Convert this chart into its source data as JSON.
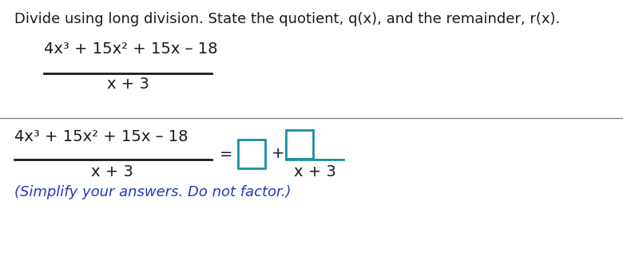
{
  "instruction_text": "Divide using long division. State the quotient, q(x), and the remainder, r(x).",
  "numerator": "4x³ + 15x² + 15x – 18",
  "denominator": "x + 3",
  "equals_sign": "=",
  "plus_sign": "+",
  "simplify_text": "(Simplify your answers. Do not factor.)",
  "bg_color": "#ffffff",
  "black": "#1a1a1a",
  "teal": "#1a8fa0",
  "dark_blue": "#1f3bbd",
  "fig_width": 7.8,
  "fig_height": 3.36,
  "dpi": 100
}
